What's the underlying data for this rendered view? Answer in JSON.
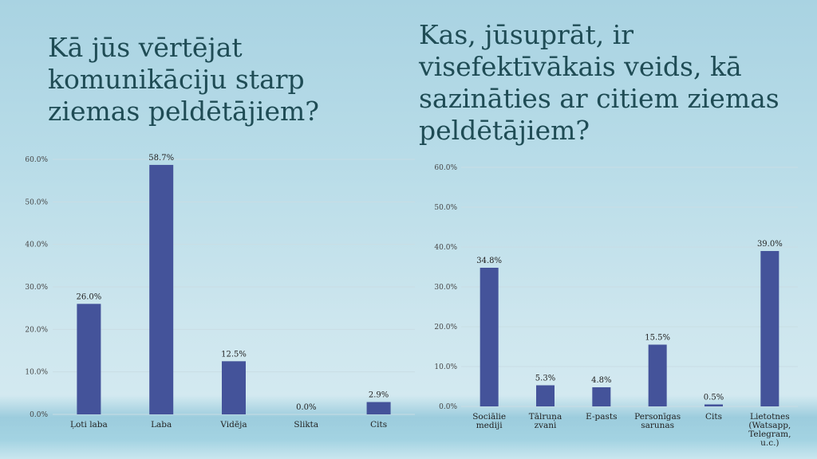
{
  "chart_data": [
    {
      "type": "bar",
      "title": "Kā  jūs vērtējat komunikāciju starp ziemas peldētājiem?",
      "categories": [
        "Ļoti laba",
        "Laba",
        "Vidēja",
        "Slikta",
        "Cits"
      ],
      "values": [
        26.0,
        58.7,
        12.5,
        0.0,
        2.9
      ],
      "value_labels": [
        "26.0%",
        "58.7%",
        "12.5%",
        "0.0%",
        "2.9%"
      ],
      "ylim": [
        0,
        60
      ],
      "yticks": [
        "0.0%",
        "10.0%",
        "20.0%",
        "30.0%",
        "40.0%",
        "50.0%",
        "60.0%"
      ],
      "grid": true,
      "bar_color": "#44539a"
    },
    {
      "type": "bar",
      "title": "Kas, jūsuprāt, ir visefektīvākais veids, kā sazināties ar citiem ziemas peldētājiem?",
      "categories": [
        [
          "Sociālie",
          "mediji"
        ],
        [
          "Tālruņa",
          "zvani"
        ],
        [
          "E-pasts"
        ],
        [
          "Personīgas",
          "sarunas"
        ],
        [
          "Cits"
        ],
        [
          "Lietotnes",
          "(Watsapp,",
          "Telegram,",
          "u.c.)"
        ]
      ],
      "values": [
        34.8,
        5.3,
        4.8,
        15.5,
        0.5,
        39.0
      ],
      "value_labels": [
        "34.8%",
        "5.3%",
        "4.8%",
        "15.5%",
        "0.5%",
        "39.0%"
      ],
      "ylim": [
        0,
        60
      ],
      "yticks": [
        "0.0%",
        "10.0%",
        "20.0%",
        "30.0%",
        "40.0%",
        "50.0%",
        "60.0%"
      ],
      "grid": true,
      "bar_color": "#44539a"
    }
  ]
}
